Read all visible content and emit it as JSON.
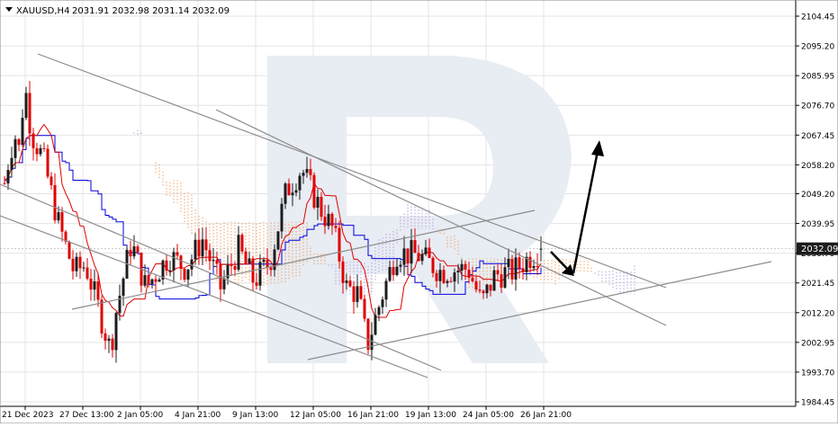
{
  "header": {
    "symbol_icon": "triangle-down-icon",
    "symbol": "XAUUSD,H4",
    "ohlc": "2031.91 2032.98 2031.14 2032.09"
  },
  "chart_data": {
    "type": "candlestick",
    "title": "XAUUSD,H4",
    "price_axis": {
      "range": [
        1984.45,
        2104.45
      ],
      "ticks": [
        "2104.45",
        "2095.20",
        "2085.95",
        "2076.70",
        "2067.45",
        "2058.20",
        "2049.20",
        "2039.95",
        "2030.70",
        "2021.45",
        "2012.20",
        "2002.95",
        "1993.70",
        "1984.45"
      ],
      "current_price_label": "2032.09"
    },
    "time_axis": {
      "ticks": [
        "21 Dec 2023",
        "27 Dec 13:00",
        "2 Jan 05:00",
        "4 Jan 21:00",
        "9 Jan 13:00",
        "12 Jan 05:00",
        "16 Jan 21:00",
        "19 Jan 13:00",
        "24 Jan 05:00",
        "26 Jan 21:00"
      ]
    },
    "last_ohlc": {
      "open": 2031.91,
      "high": 2032.98,
      "low": 2031.14,
      "close": 2032.09
    },
    "indicator": "Ichimoku Kinko Hyo",
    "grid": true,
    "colors": {
      "bull": "#1c1c1c",
      "bear": "#e00000",
      "tenkan": "#e00000",
      "kijun": "#0000dd",
      "cloud": "#f0a060",
      "cloud_alt": "#b0a0e0",
      "trendline": "#8c8c8c",
      "watermark": "#e6eaf2",
      "price_label_bg": "#1c1c1c"
    },
    "forecast": "down to ~2024, then up to ~2068"
  }
}
